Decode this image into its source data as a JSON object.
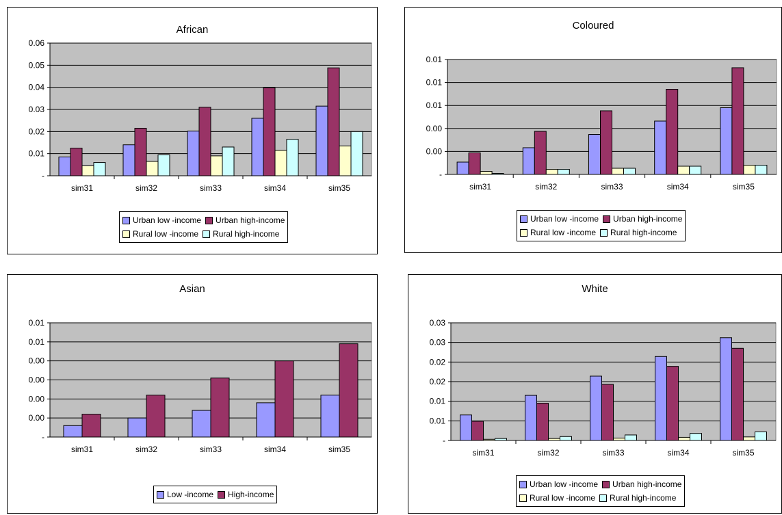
{
  "colors": {
    "urban_low": "#9999FF",
    "urban_high": "#993366",
    "rural_low": "#FFFFCC",
    "rural_high": "#CCFFFF",
    "plot_bg": "#C0C0C0"
  },
  "chart_data": [
    {
      "type": "bar",
      "title": "African",
      "categories": [
        "sim31",
        "sim32",
        "sim33",
        "sim34",
        "sim35"
      ],
      "series": [
        {
          "name": "Urban low -income",
          "values": [
            0.0085,
            0.014,
            0.0202,
            0.026,
            0.0315
          ]
        },
        {
          "name": "Urban high-income",
          "values": [
            0.0125,
            0.0215,
            0.031,
            0.0398,
            0.0488
          ]
        },
        {
          "name": "Rural low -income",
          "values": [
            0.0045,
            0.0065,
            0.009,
            0.0115,
            0.0135
          ]
        },
        {
          "name": "Rural high-income",
          "values": [
            0.006,
            0.0095,
            0.013,
            0.0165,
            0.02
          ]
        }
      ],
      "ylim": [
        0,
        0.06
      ],
      "yticks": [
        "-",
        "0.01",
        "0.02",
        "0.03",
        "0.04",
        "0.05",
        "0.06"
      ],
      "grid": true,
      "legend": {
        "position": "bottom",
        "rows": [
          [
            "Urban low -income",
            "Urban high-income"
          ],
          [
            "Rural low -income",
            "Rural high-income"
          ]
        ]
      }
    },
    {
      "type": "bar",
      "title": "Coloured",
      "categories": [
        "sim31",
        "sim32",
        "sim33",
        "sim34",
        "sim35"
      ],
      "series": [
        {
          "name": "Urban low -income",
          "values": [
            0.0012,
            0.0026,
            0.0039,
            0.0052,
            0.0065
          ]
        },
        {
          "name": "Urban high-income",
          "values": [
            0.0021,
            0.0042,
            0.0062,
            0.0083,
            0.0104
          ]
        },
        {
          "name": "Rural low -income",
          "values": [
            0.0003,
            0.0005,
            0.0006,
            0.0008,
            0.0009
          ]
        },
        {
          "name": "Rural high-income",
          "values": [
            0.0001,
            0.0005,
            0.0006,
            0.0008,
            0.0009
          ]
        }
      ],
      "ylim": [
        0,
        0.0112
      ],
      "yticks": [
        "-",
        "0.00",
        "0.00",
        "0.01",
        "0.01",
        "0.01"
      ],
      "grid": true,
      "legend": {
        "position": "bottom",
        "rows": [
          [
            "Urban low -income",
            "Urban high-income"
          ],
          [
            "Rural low -income",
            "Rural high-income"
          ]
        ]
      }
    },
    {
      "type": "bar",
      "title": "Asian",
      "categories": [
        "sim31",
        "sim32",
        "sim33",
        "sim34",
        "sim35"
      ],
      "series": [
        {
          "name": "Low -income",
          "values": [
            0.0006,
            0.001,
            0.0014,
            0.0018,
            0.0022
          ]
        },
        {
          "name": "High-income",
          "values": [
            0.0012,
            0.0022,
            0.0031,
            0.004,
            0.0049
          ]
        }
      ],
      "ylim": [
        0,
        0.006
      ],
      "yticks": [
        "-",
        "0.00",
        "0.00",
        "0.00",
        "0.00",
        "0.01",
        "0.01"
      ],
      "grid": true,
      "legend": {
        "position": "bottom",
        "rows": [
          [
            "Low -income",
            "High-income"
          ]
        ]
      }
    },
    {
      "type": "bar",
      "title": "White",
      "categories": [
        "sim31",
        "sim32",
        "sim33",
        "sim34",
        "sim35"
      ],
      "series": [
        {
          "name": "Urban low -income",
          "values": [
            0.0065,
            0.0115,
            0.0164,
            0.0214,
            0.0262
          ]
        },
        {
          "name": "Urban high-income",
          "values": [
            0.0049,
            0.0095,
            0.0143,
            0.0189,
            0.0235
          ]
        },
        {
          "name": "Rural low -income",
          "values": [
            0.0003,
            0.0005,
            0.0006,
            0.0008,
            0.0009
          ]
        },
        {
          "name": "Rural high-income",
          "values": [
            0.0005,
            0.001,
            0.0014,
            0.0018,
            0.0022
          ]
        }
      ],
      "ylim": [
        0,
        0.03
      ],
      "yticks": [
        "-",
        "0.01",
        "0.01",
        "0.02",
        "0.02",
        "0.03",
        "0.03"
      ],
      "grid": true,
      "legend": {
        "position": "bottom",
        "rows": [
          [
            "Urban low -income",
            "Urban high-income"
          ],
          [
            "Rural low -income",
            "Rural high-income"
          ]
        ]
      }
    }
  ]
}
